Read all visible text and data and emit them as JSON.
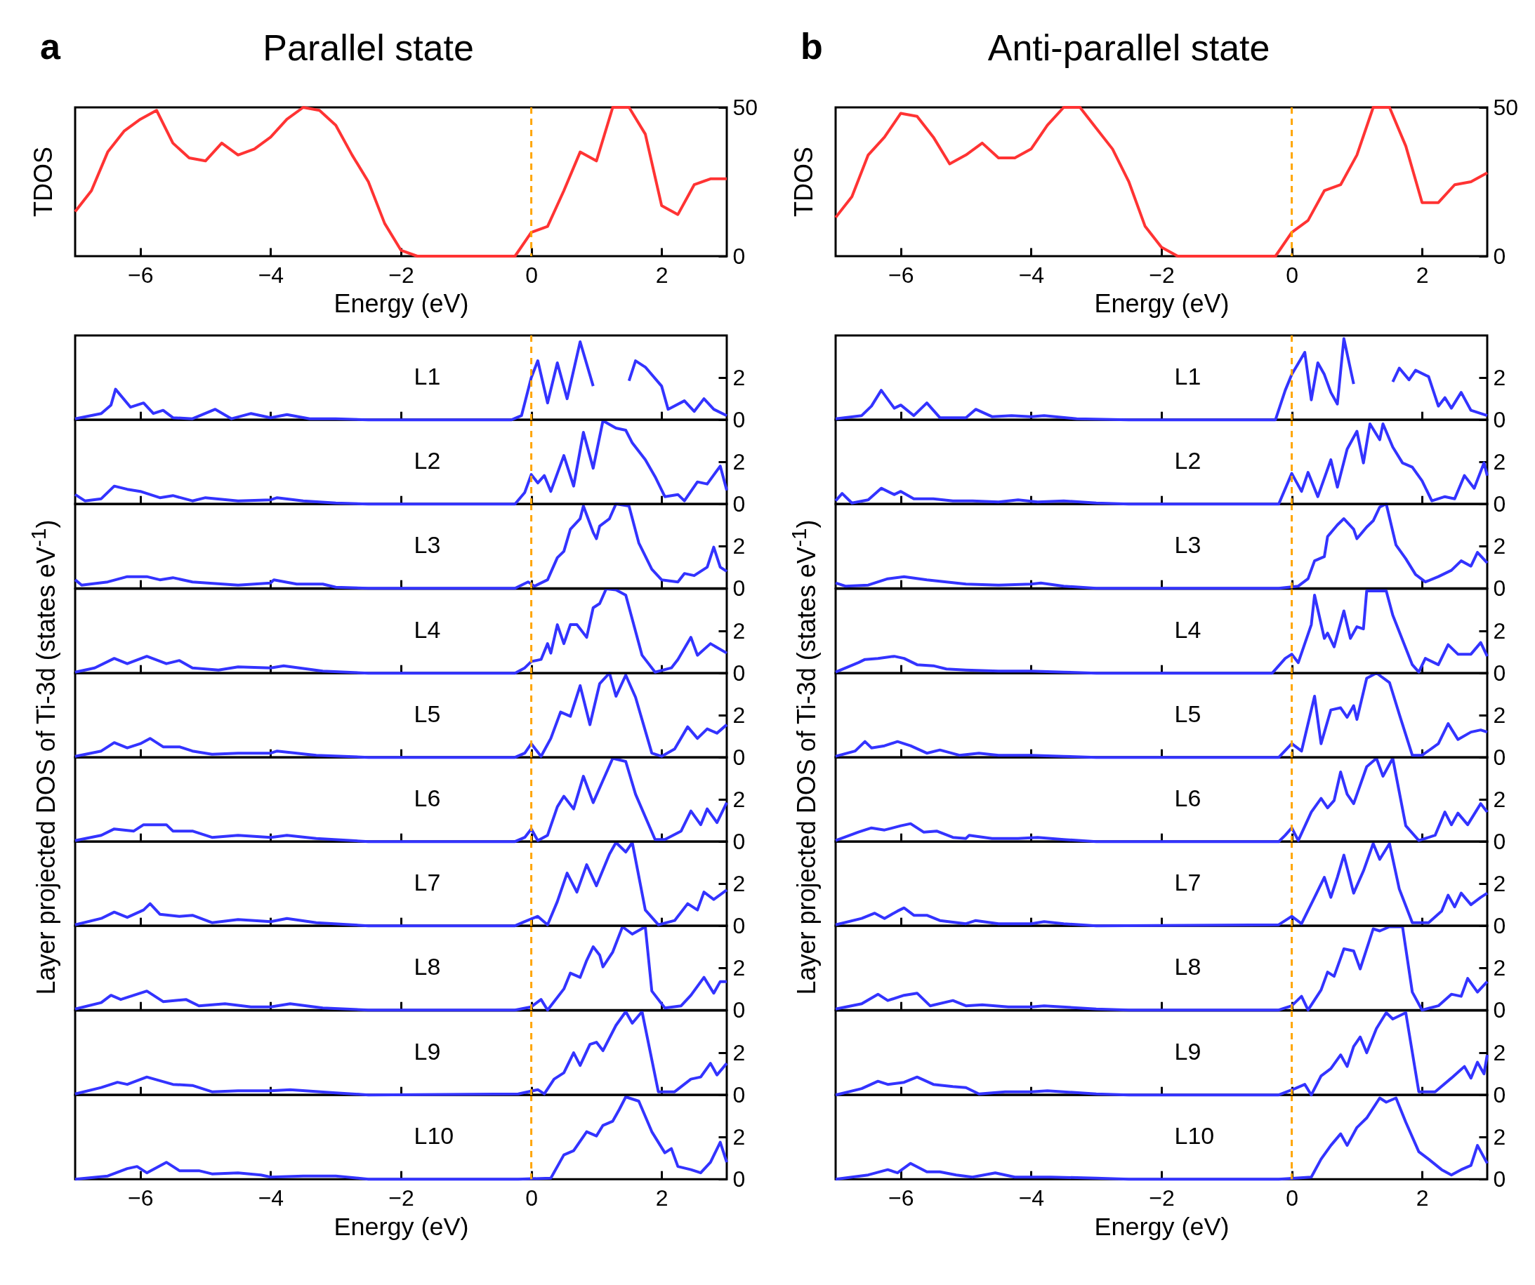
{
  "chart_data": [
    {
      "type": "line",
      "title": "Parallel state",
      "annotations": [
        "a"
      ],
      "xlabel": "Energy (eV)",
      "ylabel": "TDOS",
      "x": [
        -7,
        -6.75,
        -6.5,
        -6.25,
        -6,
        -5.75,
        -5.5,
        -5.25,
        -5,
        -4.75,
        -4.5,
        -4.25,
        -4,
        -3.75,
        -3.5,
        -3.25,
        -3,
        -2.75,
        -2.5,
        -2.25,
        -2,
        -1.75,
        -0.25,
        0,
        0.25,
        0.5,
        0.75,
        1,
        1.25,
        1.5,
        1.75,
        2,
        2.25,
        2.5,
        2.75,
        3
      ],
      "series": [
        {
          "color": "#ff3333",
          "values": [
            15,
            22,
            35,
            42,
            46,
            49,
            38,
            33,
            32,
            38,
            34,
            36,
            40,
            46,
            50,
            49,
            44,
            34,
            25,
            11,
            2,
            0,
            0,
            8,
            10,
            22,
            35,
            32,
            50,
            50,
            41,
            17,
            14,
            24,
            26,
            26
          ]
        }
      ],
      "xlim": [
        -7,
        3
      ],
      "xticks": [
        -6,
        -4,
        -2,
        0,
        2
      ],
      "ylim": [
        0,
        50
      ],
      "yticks": [
        0,
        50
      ],
      "ref_lines": [
        {
          "axis": "x",
          "value": 0,
          "color": "#ffa500",
          "line_style": "dashed"
        }
      ]
    },
    {
      "type": "line",
      "annotations": [
        "L1"
      ],
      "ylabel": "Layer projected DOS of Ti-3d (states eV$^{-1}$)",
      "x": [
        -7,
        -6.6,
        -6.45,
        -6.38,
        -6.15,
        -5.95,
        -5.8,
        -5.65,
        -5.5,
        -5.2,
        -4.85,
        -4.6,
        -4.3,
        -4,
        -3.75,
        -3.4,
        -3,
        -2.5,
        -0.3,
        -0.15,
        0,
        0.1,
        0.25,
        0.4,
        0.55,
        0.75,
        0.95,
        1.15,
        1.3,
        1.5,
        1.6,
        1.75,
        2,
        2.1,
        2.35,
        2.5,
        2.65,
        2.8,
        3
      ],
      "series": [
        {
          "color": "#3333ff",
          "values": [
            0.05,
            0.3,
            0.7,
            1.45,
            0.6,
            0.8,
            0.3,
            0.45,
            0.1,
            0.05,
            0.5,
            0.05,
            0.3,
            0.1,
            0.25,
            0.05,
            0.05,
            0,
            0,
            0.2,
            2.0,
            2.8,
            0.8,
            2.7,
            1.0,
            3.7,
            1.6,
            null,
            null,
            1.85,
            2.8,
            2.5,
            1.6,
            0.5,
            0.9,
            0.4,
            1.0,
            0.5,
            0.2
          ]
        }
      ],
      "xlim": [
        -7,
        3
      ],
      "xticks": [
        -6,
        -4,
        -2,
        0,
        2
      ],
      "ylim": [
        0,
        4
      ],
      "yticks": [
        0,
        2
      ],
      "tick_labels": "y",
      "ref_lines": [
        {
          "axis": "x",
          "value": 0,
          "color": "#ffa500",
          "line_style": "dashed"
        }
      ]
    },
    {
      "type": "line",
      "annotations": [
        "L2"
      ],
      "x": [
        -7,
        -6.85,
        -6.6,
        -6.4,
        -6.2,
        -6,
        -5.7,
        -5.5,
        -5.2,
        -5,
        -4.5,
        -4,
        -3.9,
        -3.5,
        -3,
        -2.5,
        -0.25,
        -0.1,
        0,
        0.1,
        0.2,
        0.3,
        0.5,
        0.65,
        0.8,
        0.95,
        1.1,
        1.3,
        1.45,
        1.55,
        1.75,
        1.9,
        2.05,
        2.25,
        2.35,
        2.55,
        2.7,
        2.9,
        3
      ],
      "series": [
        {
          "color": "#3333ff",
          "values": [
            0.45,
            0.15,
            0.25,
            0.85,
            0.7,
            0.6,
            0.3,
            0.4,
            0.15,
            0.3,
            0.15,
            0.2,
            0.3,
            0.15,
            0.05,
            0,
            0,
            0.55,
            1.4,
            1.0,
            1.35,
            0.6,
            2.3,
            0.85,
            3.4,
            1.7,
            3.95,
            3.6,
            3.5,
            2.9,
            2.1,
            1.3,
            0.35,
            0.45,
            0.15,
            1.05,
            0.95,
            1.8,
            0.65
          ]
        }
      ],
      "xlim": [
        -7,
        3
      ],
      "xticks": [
        -6,
        -4,
        -2,
        0,
        2
      ],
      "ylim": [
        0,
        4
      ],
      "yticks": [
        0,
        2
      ],
      "tick_labels": "y",
      "ref_lines": [
        {
          "axis": "x",
          "value": 0,
          "color": "#ffa500",
          "line_style": "dashed"
        }
      ]
    },
    {
      "type": "line",
      "annotations": [
        "L3"
      ],
      "x": [
        -7,
        -6.9,
        -6.5,
        -6.2,
        -5.9,
        -5.7,
        -5.5,
        -5.2,
        -4.5,
        -4,
        -3.95,
        -3.6,
        -3.2,
        -3,
        -2.5,
        -0.25,
        -0.05,
        0.05,
        0.25,
        0.4,
        0.5,
        0.6,
        0.75,
        0.8,
        0.95,
        1,
        1.05,
        1.2,
        1.3,
        1.5,
        1.65,
        1.85,
        2,
        2.25,
        2.35,
        2.5,
        2.7,
        2.8,
        2.9,
        3
      ],
      "series": [
        {
          "color": "#3333ff",
          "values": [
            0.4,
            0.15,
            0.3,
            0.55,
            0.55,
            0.4,
            0.5,
            0.3,
            0.15,
            0.25,
            0.4,
            0.2,
            0.2,
            0.05,
            0,
            0,
            0.3,
            0.1,
            0.4,
            1.45,
            1.75,
            2.8,
            3.3,
            3.9,
            2.65,
            2.35,
            2.95,
            3.3,
            4,
            3.9,
            2.15,
            0.9,
            0.4,
            0.3,
            0.7,
            0.6,
            1.0,
            1.95,
            1.0,
            0.8
          ]
        }
      ],
      "xlim": [
        -7,
        3
      ],
      "xticks": [
        -6,
        -4,
        -2,
        0,
        2
      ],
      "ylim": [
        0,
        4
      ],
      "yticks": [
        0,
        2
      ],
      "tick_labels": "y",
      "ref_lines": [
        {
          "axis": "x",
          "value": 0,
          "color": "#ffa500",
          "line_style": "dashed"
        }
      ]
    },
    {
      "type": "line",
      "annotations": [
        "L4"
      ],
      "x": [
        -7,
        -6.7,
        -6.4,
        -6.2,
        -5.9,
        -5.6,
        -5.4,
        -5.2,
        -4.8,
        -4.5,
        -4,
        -3.8,
        -3.2,
        -2.5,
        -0.25,
        -0.1,
        0,
        0.15,
        0.25,
        0.3,
        0.4,
        0.5,
        0.6,
        0.7,
        0.85,
        0.95,
        1.05,
        1.15,
        1.3,
        1.45,
        1.7,
        1.9,
        2.15,
        2.25,
        2.45,
        2.55,
        2.75,
        3
      ],
      "series": [
        {
          "color": "#3333ff",
          "values": [
            0.05,
            0.25,
            0.7,
            0.45,
            0.8,
            0.45,
            0.6,
            0.25,
            0.15,
            0.3,
            0.25,
            0.35,
            0.1,
            0,
            0,
            0.25,
            0.55,
            0.65,
            1.4,
            0.95,
            2.3,
            1.4,
            2.3,
            2.3,
            1.7,
            3.1,
            3.3,
            4,
            3.95,
            3.7,
            0.85,
            0.05,
            0.25,
            0.65,
            1.7,
            0.85,
            1.4,
            0.95
          ]
        }
      ],
      "xlim": [
        -7,
        3
      ],
      "xticks": [
        -6,
        -4,
        -2,
        0,
        2
      ],
      "ylim": [
        0,
        4
      ],
      "yticks": [
        0,
        2
      ],
      "tick_labels": "y",
      "ref_lines": [
        {
          "axis": "x",
          "value": 0,
          "color": "#ffa500",
          "line_style": "dashed"
        }
      ]
    },
    {
      "type": "line",
      "annotations": [
        "L5"
      ],
      "x": [
        -7,
        -6.6,
        -6.4,
        -6.2,
        -6,
        -5.85,
        -5.65,
        -5.4,
        -5.2,
        -4.9,
        -4.5,
        -4,
        -3.9,
        -3.3,
        -2.5,
        -0.25,
        -0.1,
        0,
        0.15,
        0.3,
        0.45,
        0.6,
        0.75,
        0.9,
        1.05,
        1.2,
        1.3,
        1.45,
        1.6,
        1.85,
        2,
        2.2,
        2.4,
        2.55,
        2.7,
        2.85,
        3
      ],
      "series": [
        {
          "color": "#3333ff",
          "values": [
            0.05,
            0.3,
            0.7,
            0.45,
            0.65,
            0.9,
            0.5,
            0.5,
            0.3,
            0.15,
            0.2,
            0.2,
            0.3,
            0.1,
            0,
            0,
            0.2,
            0.65,
            0.05,
            0.9,
            2.15,
            1.95,
            3.4,
            1.55,
            3.5,
            4,
            2.9,
            3.9,
            2.85,
            0.2,
            0.05,
            0.4,
            1.45,
            0.9,
            1.35,
            1.15,
            1.55
          ]
        }
      ],
      "xlim": [
        -7,
        3
      ],
      "xticks": [
        -6,
        -4,
        -2,
        0,
        2
      ],
      "ylim": [
        0,
        4
      ],
      "yticks": [
        0,
        2
      ],
      "tick_labels": "y",
      "ref_lines": [
        {
          "axis": "x",
          "value": 0,
          "color": "#ffa500",
          "line_style": "dashed"
        }
      ]
    },
    {
      "type": "line",
      "annotations": [
        "L6"
      ],
      "x": [
        -7,
        -6.6,
        -6.4,
        -6.1,
        -5.95,
        -5.6,
        -5.5,
        -5.2,
        -4.9,
        -4.5,
        -4,
        -3.75,
        -3.3,
        -2.5,
        -0.25,
        -0.1,
        0,
        0.1,
        0.25,
        0.4,
        0.5,
        0.65,
        0.8,
        0.95,
        1.1,
        1.25,
        1.45,
        1.6,
        1.9,
        2.05,
        2.3,
        2.45,
        2.6,
        2.7,
        2.85,
        3
      ],
      "series": [
        {
          "color": "#3333ff",
          "values": [
            0.05,
            0.3,
            0.6,
            0.5,
            0.8,
            0.8,
            0.5,
            0.5,
            0.2,
            0.3,
            0.2,
            0.3,
            0.15,
            0,
            0,
            0.2,
            0.6,
            0.05,
            0.3,
            1.65,
            2.15,
            1.55,
            3.1,
            1.85,
            2.9,
            3.95,
            3.8,
            2.25,
            0.1,
            0.1,
            0.5,
            1.45,
            0.8,
            1.55,
            0.9,
            1.85
          ]
        }
      ],
      "xlim": [
        -7,
        3
      ],
      "xticks": [
        -6,
        -4,
        -2,
        0,
        2
      ],
      "ylim": [
        0,
        4
      ],
      "yticks": [
        0,
        2
      ],
      "tick_labels": "y",
      "ref_lines": [
        {
          "axis": "x",
          "value": 0,
          "color": "#ffa500",
          "line_style": "dashed"
        }
      ]
    },
    {
      "type": "line",
      "annotations": [
        "L7"
      ],
      "x": [
        -7,
        -6.6,
        -6.4,
        -6.2,
        -5.95,
        -5.85,
        -5.7,
        -5.4,
        -5.2,
        -4.9,
        -4.5,
        -4,
        -3.75,
        -3.3,
        -2.5,
        -0.25,
        -0.1,
        0.1,
        0.25,
        0.4,
        0.55,
        0.7,
        0.85,
        1,
        1.2,
        1.3,
        1.45,
        1.55,
        1.75,
        1.95,
        2.2,
        2.4,
        2.55,
        2.65,
        2.8,
        3
      ],
      "series": [
        {
          "color": "#3333ff",
          "values": [
            0.05,
            0.35,
            0.65,
            0.4,
            0.75,
            1.05,
            0.55,
            0.45,
            0.5,
            0.15,
            0.3,
            0.2,
            0.35,
            0.15,
            0,
            0,
            0.2,
            0.45,
            0.05,
            1.15,
            2.5,
            1.6,
            2.9,
            1.9,
            3.4,
            3.95,
            3.5,
            3.95,
            0.75,
            0.05,
            0.25,
            1.05,
            0.75,
            1.6,
            1.25,
            1.7
          ]
        }
      ],
      "xlim": [
        -7,
        3
      ],
      "xticks": [
        -6,
        -4,
        -2,
        0,
        2
      ],
      "ylim": [
        0,
        4
      ],
      "yticks": [
        0,
        2
      ],
      "tick_labels": "y",
      "ref_lines": [
        {
          "axis": "x",
          "value": 0,
          "color": "#ffa500",
          "line_style": "dashed"
        }
      ]
    },
    {
      "type": "line",
      "annotations": [
        "L8"
      ],
      "x": [
        -7,
        -6.6,
        -6.45,
        -6.3,
        -6.1,
        -5.9,
        -5.65,
        -5.3,
        -5.1,
        -4.7,
        -4.3,
        -4,
        -3.7,
        -3.2,
        -2.5,
        -0.25,
        0,
        0.15,
        0.25,
        0.5,
        0.6,
        0.75,
        0.85,
        0.95,
        1.05,
        1.1,
        1.25,
        1.4,
        1.55,
        1.75,
        1.85,
        2.05,
        2.3,
        2.45,
        2.65,
        2.8,
        2.9,
        3
      ],
      "series": [
        {
          "color": "#3333ff",
          "values": [
            0.05,
            0.35,
            0.7,
            0.5,
            0.7,
            0.9,
            0.4,
            0.5,
            0.2,
            0.3,
            0.15,
            0.15,
            0.3,
            0.1,
            0,
            0,
            0.15,
            0.5,
            0,
            1.0,
            1.75,
            1.55,
            2.35,
            3.0,
            2.6,
            2.05,
            2.75,
            3.95,
            3.6,
            3.95,
            0.9,
            0.1,
            0.2,
            0.7,
            1.55,
            0.8,
            1.35,
            1.35
          ]
        }
      ],
      "xlim": [
        -7,
        3
      ],
      "xticks": [
        -6,
        -4,
        -2,
        0,
        2
      ],
      "ylim": [
        0,
        4
      ],
      "yticks": [
        0,
        2
      ],
      "tick_labels": "y",
      "ref_lines": [
        {
          "axis": "x",
          "value": 0,
          "color": "#ffa500",
          "line_style": "dashed"
        }
      ]
    },
    {
      "type": "line",
      "annotations": [
        "L9"
      ],
      "x": [
        -7,
        -6.6,
        -6.35,
        -6.2,
        -5.9,
        -5.5,
        -5.2,
        -4.9,
        -4.5,
        -4,
        -3.7,
        -3,
        -2.5,
        -0.2,
        0.1,
        0.2,
        0.35,
        0.5,
        0.65,
        0.75,
        0.9,
        1,
        1.1,
        1.3,
        1.45,
        1.55,
        1.7,
        1.95,
        2.2,
        2.45,
        2.6,
        2.75,
        2.85,
        3
      ],
      "series": [
        {
          "color": "#3333ff",
          "values": [
            0.05,
            0.35,
            0.6,
            0.5,
            0.85,
            0.5,
            0.45,
            0.15,
            0.2,
            0.2,
            0.25,
            0.1,
            0,
            0.05,
            0.25,
            0.05,
            0.75,
            1.05,
            2.0,
            1.4,
            2.4,
            2.5,
            2.1,
            3.3,
            3.95,
            3.4,
            3.95,
            0.15,
            0.15,
            0.75,
            0.85,
            1.5,
            0.95,
            1.5
          ]
        }
      ],
      "xlim": [
        -7,
        3
      ],
      "xticks": [
        -6,
        -4,
        -2,
        0,
        2
      ],
      "ylim": [
        0,
        4
      ],
      "yticks": [
        0,
        2
      ],
      "tick_labels": "y",
      "ref_lines": [
        {
          "axis": "x",
          "value": 0,
          "color": "#ffa500",
          "line_style": "dashed"
        }
      ]
    },
    {
      "type": "line",
      "annotations": [
        "L10"
      ],
      "xlabel": "Energy (eV)",
      "x": [
        -7,
        -6.5,
        -6.2,
        -6.05,
        -5.9,
        -5.6,
        -5.4,
        -5.1,
        -4.9,
        -4.5,
        -4.15,
        -4,
        -3.5,
        -3,
        -2.5,
        -0.2,
        0.3,
        0.5,
        0.65,
        0.85,
        1,
        1.1,
        1.25,
        1.35,
        1.45,
        1.65,
        1.85,
        2.05,
        2.15,
        2.25,
        2.45,
        2.6,
        2.75,
        2.9,
        3
      ],
      "series": [
        {
          "color": "#3333ff",
          "values": [
            0,
            0.15,
            0.5,
            0.6,
            0.3,
            0.8,
            0.4,
            0.4,
            0.25,
            0.3,
            0.2,
            0.1,
            0.15,
            0.15,
            0,
            0,
            0.05,
            1.15,
            1.35,
            2.25,
            2.05,
            2.55,
            2.75,
            3.3,
            3.9,
            3.7,
            2.25,
            1.25,
            1.45,
            0.6,
            0.45,
            0.3,
            0.8,
            1.75,
            0.8
          ]
        }
      ],
      "xlim": [
        -7,
        3
      ],
      "xticks": [
        -6,
        -4,
        -2,
        0,
        2
      ],
      "ylim": [
        0,
        4
      ],
      "yticks": [
        0,
        2
      ],
      "ref_lines": [
        {
          "axis": "x",
          "value": 0,
          "color": "#ffa500",
          "line_style": "dashed"
        }
      ]
    },
    {
      "type": "line",
      "title": "Anti-parallel state",
      "annotations": [
        "b"
      ],
      "xlabel": "Energy (eV)",
      "ylabel": "TDOS",
      "x": [
        -7,
        -6.75,
        -6.5,
        -6.25,
        -6,
        -5.75,
        -5.5,
        -5.25,
        -5,
        -4.75,
        -4.5,
        -4.25,
        -4,
        -3.75,
        -3.5,
        -3.25,
        -3,
        -2.75,
        -2.5,
        -2.25,
        -2,
        -1.75,
        -0.25,
        0,
        0.25,
        0.5,
        0.75,
        1,
        1.25,
        1.5,
        1.75,
        2,
        2.25,
        2.5,
        2.75,
        3
      ],
      "series": [
        {
          "color": "#ff3333",
          "values": [
            13,
            20,
            34,
            40,
            48,
            47,
            40,
            31,
            34,
            38,
            33,
            33,
            36,
            44,
            50,
            50,
            43,
            36,
            25,
            10,
            3,
            0,
            0,
            8,
            12,
            22,
            24,
            34,
            50,
            50,
            37,
            18,
            18,
            24,
            25,
            28
          ]
        }
      ],
      "xlim": [
        -7,
        3
      ],
      "xticks": [
        -6,
        -4,
        -2,
        0,
        2
      ],
      "ylim": [
        0,
        50
      ],
      "yticks": [
        0,
        50
      ],
      "ref_lines": [
        {
          "axis": "x",
          "value": 0,
          "color": "#ffa500",
          "line_style": "dashed"
        }
      ]
    },
    {
      "type": "line",
      "annotations": [
        "L1"
      ],
      "ylabel": "Layer projected DOS of Ti-3d (states eV$^{-1}$)",
      "x": [
        -7,
        -6.6,
        -6.45,
        -6.3,
        -6.1,
        -6,
        -5.8,
        -5.6,
        -5.4,
        -5,
        -4.85,
        -4.6,
        -4.3,
        -4,
        -3.8,
        -3.3,
        -2.5,
        -0.25,
        -0.1,
        0,
        0.2,
        0.3,
        0.4,
        0.5,
        0.6,
        0.7,
        0.8,
        0.95,
        1.15,
        1.4,
        1.55,
        1.65,
        1.8,
        1.9,
        2.1,
        2.25,
        2.35,
        2.45,
        2.6,
        2.75,
        3
      ],
      "series": [
        {
          "color": "#3333ff",
          "values": [
            0.05,
            0.2,
            0.65,
            1.4,
            0.55,
            0.7,
            0.2,
            0.8,
            0.1,
            0.1,
            0.5,
            0.15,
            0.2,
            0.15,
            0.2,
            0.05,
            0,
            0,
            1.4,
            2.15,
            3.2,
            0.95,
            2.7,
            2.15,
            1.3,
            0.75,
            3.85,
            1.7,
            null,
            null,
            1.8,
            2.45,
            1.9,
            2.35,
            2.05,
            0.65,
            1.05,
            0.55,
            1.3,
            0.45,
            0.2
          ]
        }
      ],
      "xlim": [
        -7,
        3
      ],
      "xticks": [
        -6,
        -4,
        -2,
        0,
        2
      ],
      "ylim": [
        0,
        4
      ],
      "yticks": [
        0,
        2
      ],
      "tick_labels": "y",
      "ref_lines": [
        {
          "axis": "x",
          "value": 0,
          "color": "#ffa500",
          "line_style": "dashed"
        }
      ]
    },
    {
      "type": "line",
      "annotations": [
        "L2"
      ],
      "x": [
        -7,
        -6.9,
        -6.75,
        -6.5,
        -6.3,
        -6.1,
        -6,
        -5.8,
        -5.5,
        -5.2,
        -4.9,
        -4.5,
        -4.2,
        -3.9,
        -3.5,
        -3,
        -2.5,
        -0.2,
        0,
        0.15,
        0.25,
        0.4,
        0.6,
        0.7,
        0.85,
        1,
        1.1,
        1.2,
        1.35,
        1.4,
        1.55,
        1.7,
        1.85,
        2,
        2.15,
        2.35,
        2.5,
        2.65,
        2.8,
        2.95,
        3
      ],
      "series": [
        {
          "color": "#3333ff",
          "values": [
            0.15,
            0.5,
            0.05,
            0.2,
            0.75,
            0.45,
            0.6,
            0.25,
            0.25,
            0.15,
            0.15,
            0.1,
            0.2,
            0.1,
            0.15,
            0.05,
            0,
            0,
            1.45,
            0.6,
            1.5,
            0.35,
            2.1,
            0.8,
            2.6,
            3.45,
            1.95,
            3.8,
            3.05,
            3.8,
            2.7,
            1.95,
            1.75,
            1.1,
            0.15,
            0.35,
            0.25,
            1.35,
            0.75,
            1.95,
            1.35
          ]
        }
      ],
      "xlim": [
        -7,
        3
      ],
      "xticks": [
        -6,
        -4,
        -2,
        0,
        2
      ],
      "ylim": [
        0,
        4
      ],
      "yticks": [
        0,
        2
      ],
      "tick_labels": "y",
      "ref_lines": [
        {
          "axis": "x",
          "value": 0,
          "color": "#ffa500",
          "line_style": "dashed"
        }
      ]
    },
    {
      "type": "line",
      "annotations": [
        "L3"
      ],
      "x": [
        -7,
        -6.85,
        -6.5,
        -6.2,
        -5.95,
        -5.6,
        -5.3,
        -5,
        -4.5,
        -4,
        -3.85,
        -3.5,
        -3,
        -0.2,
        0.1,
        0.25,
        0.35,
        0.5,
        0.55,
        0.7,
        0.8,
        0.95,
        1,
        1.15,
        1.25,
        1.35,
        1.45,
        1.6,
        1.75,
        1.9,
        2.05,
        2.25,
        2.45,
        2.6,
        2.75,
        2.85,
        3
      ],
      "series": [
        {
          "color": "#3333ff",
          "values": [
            0.25,
            0.1,
            0.15,
            0.45,
            0.55,
            0.4,
            0.3,
            0.2,
            0.15,
            0.2,
            0.25,
            0.1,
            0,
            0,
            0.1,
            0.45,
            1.3,
            1.5,
            2.45,
            3.0,
            3.3,
            2.8,
            2.35,
            2.9,
            3.2,
            3.85,
            4,
            2.05,
            1.4,
            0.65,
            0.3,
            0.55,
            0.85,
            1.3,
            1.05,
            1.7,
            1.2
          ]
        }
      ],
      "xlim": [
        -7,
        3
      ],
      "xticks": [
        -6,
        -4,
        -2,
        0,
        2
      ],
      "ylim": [
        0,
        4
      ],
      "yticks": [
        0,
        2
      ],
      "tick_labels": "y",
      "ref_lines": [
        {
          "axis": "x",
          "value": 0,
          "color": "#ffa500",
          "line_style": "dashed"
        }
      ]
    },
    {
      "type": "line",
      "annotations": [
        "L4"
      ],
      "x": [
        -7,
        -6.65,
        -6.55,
        -6.35,
        -6.1,
        -5.95,
        -5.75,
        -5.5,
        -5.3,
        -5,
        -4.5,
        -4,
        -3.5,
        -3,
        -0.3,
        -0.1,
        0,
        0.1,
        0.3,
        0.35,
        0.5,
        0.55,
        0.65,
        0.8,
        0.9,
        1,
        1.1,
        1.15,
        1.45,
        1.55,
        1.85,
        1.95,
        2.05,
        2.25,
        2.4,
        2.55,
        2.75,
        2.9,
        3
      ],
      "series": [
        {
          "color": "#3333ff",
          "values": [
            0.05,
            0.5,
            0.65,
            0.7,
            0.8,
            0.7,
            0.4,
            0.35,
            0.2,
            0.15,
            0.1,
            0.1,
            0.05,
            0,
            0,
            0.7,
            0.9,
            0.5,
            2.3,
            3.7,
            1.65,
            1.9,
            1.25,
            2.95,
            1.65,
            2.2,
            2.1,
            3.9,
            3.9,
            2.75,
            0.4,
            0.05,
            0.7,
            0.4,
            1.35,
            0.9,
            0.9,
            1.45,
            0.8
          ]
        }
      ],
      "xlim": [
        -7,
        3
      ],
      "xticks": [
        -6,
        -4,
        -2,
        0,
        2
      ],
      "ylim": [
        0,
        4
      ],
      "yticks": [
        0,
        2
      ],
      "tick_labels": "y",
      "ref_lines": [
        {
          "axis": "x",
          "value": 0,
          "color": "#ffa500",
          "line_style": "dashed"
        }
      ]
    },
    {
      "type": "line",
      "annotations": [
        "L5"
      ],
      "x": [
        -7,
        -6.7,
        -6.55,
        -6.45,
        -6.25,
        -6.05,
        -5.85,
        -5.6,
        -5.4,
        -5.1,
        -4.8,
        -4.5,
        -4,
        -3.5,
        -3,
        -0.2,
        0,
        0.15,
        0.3,
        0.35,
        0.45,
        0.6,
        0.75,
        0.85,
        0.95,
        1,
        1.15,
        1.3,
        1.5,
        1.65,
        1.85,
        2,
        2.25,
        2.4,
        2.55,
        2.75,
        2.9,
        3
      ],
      "series": [
        {
          "color": "#3333ff",
          "values": [
            0.05,
            0.3,
            0.75,
            0.45,
            0.55,
            0.75,
            0.55,
            0.2,
            0.35,
            0.1,
            0.2,
            0.1,
            0.1,
            0.05,
            0,
            0,
            0.65,
            0.3,
            2.25,
            2.9,
            0.65,
            2.25,
            2.35,
            1.9,
            2.45,
            1.8,
            3.75,
            4,
            3.55,
            2.05,
            0.1,
            0.1,
            0.65,
            1.6,
            0.85,
            1.2,
            1.3,
            1.2
          ]
        }
      ],
      "xlim": [
        -7,
        3
      ],
      "xticks": [
        -6,
        -4,
        -2,
        0,
        2
      ],
      "ylim": [
        0,
        4
      ],
      "yticks": [
        0,
        2
      ],
      "tick_labels": "y",
      "ref_lines": [
        {
          "axis": "x",
          "value": 0,
          "color": "#ffa500",
          "line_style": "dashed"
        }
      ]
    },
    {
      "type": "line",
      "annotations": [
        "L6"
      ],
      "x": [
        -7,
        -6.65,
        -6.45,
        -6.25,
        -6,
        -5.85,
        -5.65,
        -5.45,
        -5.2,
        -5,
        -4.95,
        -4.6,
        -4.2,
        -3.9,
        -3.5,
        -3,
        -0.2,
        -0.1,
        0,
        0.1,
        0.3,
        0.45,
        0.55,
        0.65,
        0.75,
        0.85,
        0.95,
        1.15,
        1.3,
        1.4,
        1.55,
        1.75,
        1.95,
        2.2,
        2.35,
        2.45,
        2.55,
        2.7,
        2.9,
        3
      ],
      "series": [
        {
          "color": "#3333ff",
          "values": [
            0.05,
            0.45,
            0.65,
            0.55,
            0.75,
            0.85,
            0.45,
            0.5,
            0.2,
            0.15,
            0.3,
            0.15,
            0.15,
            0.2,
            0.1,
            0,
            0,
            0.3,
            0.65,
            0.05,
            1.4,
            2.05,
            1.6,
            1.95,
            3.3,
            2.25,
            1.8,
            3.55,
            3.95,
            3.1,
            3.95,
            0.75,
            0.05,
            0.3,
            1.4,
            0.8,
            1.35,
            0.8,
            1.8,
            1.4
          ]
        }
      ],
      "xlim": [
        -7,
        3
      ],
      "xticks": [
        -6,
        -4,
        -2,
        0,
        2
      ],
      "ylim": [
        0,
        4
      ],
      "yticks": [
        0,
        2
      ],
      "tick_labels": "y",
      "ref_lines": [
        {
          "axis": "x",
          "value": 0,
          "color": "#ffa500",
          "line_style": "dashed"
        }
      ]
    },
    {
      "type": "line",
      "annotations": [
        "L7"
      ],
      "x": [
        -7,
        -6.6,
        -6.4,
        -6.25,
        -6.05,
        -5.95,
        -5.8,
        -5.6,
        -5.4,
        -5,
        -4.85,
        -4.5,
        -4,
        -3.8,
        -3.5,
        -3,
        -0.2,
        0,
        0.15,
        0.35,
        0.5,
        0.6,
        0.7,
        0.8,
        0.95,
        1.1,
        1.25,
        1.35,
        1.5,
        1.65,
        1.85,
        2.1,
        2.3,
        2.4,
        2.5,
        2.6,
        2.75,
        2.9,
        3
      ],
      "series": [
        {
          "color": "#3333ff",
          "values": [
            0.05,
            0.35,
            0.6,
            0.35,
            0.7,
            0.85,
            0.5,
            0.5,
            0.25,
            0.1,
            0.25,
            0.1,
            0.1,
            0.2,
            0.1,
            0,
            0.05,
            0.45,
            0.1,
            1.35,
            2.3,
            1.35,
            2.3,
            3.35,
            1.55,
            2.6,
            3.9,
            3.15,
            3.9,
            1.75,
            0.15,
            0.15,
            0.7,
            1.45,
            0.9,
            1.55,
            1.0,
            1.35,
            1.55
          ]
        }
      ],
      "xlim": [
        -7,
        3
      ],
      "xticks": [
        -6,
        -4,
        -2,
        0,
        2
      ],
      "ylim": [
        0,
        4
      ],
      "yticks": [
        0,
        2
      ],
      "tick_labels": "y",
      "ref_lines": [
        {
          "axis": "x",
          "value": 0,
          "color": "#ffa500",
          "line_style": "dashed"
        }
      ]
    },
    {
      "type": "line",
      "annotations": [
        "L8"
      ],
      "x": [
        -7,
        -6.6,
        -6.35,
        -6.2,
        -5.95,
        -5.75,
        -5.55,
        -5.2,
        -5,
        -4.75,
        -4.35,
        -4,
        -3.8,
        -3,
        -2.5,
        -0.2,
        0,
        0.15,
        0.25,
        0.45,
        0.55,
        0.65,
        0.8,
        0.95,
        1.05,
        1.25,
        1.35,
        1.5,
        1.7,
        1.85,
        2,
        2.25,
        2.45,
        2.6,
        2.7,
        2.85,
        3
      ],
      "series": [
        {
          "color": "#3333ff",
          "values": [
            0.05,
            0.3,
            0.75,
            0.45,
            0.7,
            0.8,
            0.2,
            0.45,
            0.2,
            0.25,
            0.15,
            0.15,
            0.2,
            0.05,
            0,
            0,
            0.2,
            0.65,
            0,
            0.95,
            1.8,
            1.6,
            2.9,
            2.8,
            1.95,
            3.85,
            3.75,
            3.95,
            3.95,
            0.85,
            0,
            0.2,
            0.75,
            0.65,
            1.5,
            0.85,
            1.35
          ]
        }
      ],
      "xlim": [
        -7,
        3
      ],
      "xticks": [
        -6,
        -4,
        -2,
        0,
        2
      ],
      "ylim": [
        0,
        4
      ],
      "yticks": [
        0,
        2
      ],
      "tick_labels": "y",
      "ref_lines": [
        {
          "axis": "x",
          "value": 0,
          "color": "#ffa500",
          "line_style": "dashed"
        }
      ]
    },
    {
      "type": "line",
      "annotations": [
        "L9"
      ],
      "x": [
        -7,
        -6.6,
        -6.35,
        -6.2,
        -5.95,
        -5.75,
        -5.5,
        -5.2,
        -5,
        -4.8,
        -4.4,
        -4,
        -3.75,
        -3,
        -2.5,
        -0.2,
        0.05,
        0.2,
        0.3,
        0.45,
        0.6,
        0.75,
        0.85,
        0.95,
        1.05,
        1.15,
        1.3,
        1.45,
        1.55,
        1.75,
        1.95,
        2.2,
        2.45,
        2.65,
        2.75,
        2.85,
        2.95,
        3
      ],
      "series": [
        {
          "color": "#3333ff",
          "values": [
            0,
            0.3,
            0.65,
            0.5,
            0.6,
            0.85,
            0.5,
            0.4,
            0.35,
            0.05,
            0.15,
            0.15,
            0.2,
            0.05,
            0,
            0,
            0.3,
            0.5,
            0,
            0.9,
            1.25,
            1.9,
            1.35,
            2.3,
            2.75,
            2.0,
            3.15,
            3.9,
            3.6,
            3.9,
            0.15,
            0.15,
            0.8,
            1.35,
            0.8,
            1.55,
            1.0,
            1.9
          ]
        }
      ],
      "xlim": [
        -7,
        3
      ],
      "xticks": [
        -6,
        -4,
        -2,
        0,
        2
      ],
      "ylim": [
        0,
        4
      ],
      "yticks": [
        0,
        2
      ],
      "tick_labels": "y",
      "ref_lines": [
        {
          "axis": "x",
          "value": 0,
          "color": "#ffa500",
          "line_style": "dashed"
        }
      ]
    },
    {
      "type": "line",
      "annotations": [
        "L10"
      ],
      "xlabel": "Energy (eV)",
      "x": [
        -7,
        -6.5,
        -6.2,
        -6.05,
        -5.85,
        -5.6,
        -5.4,
        -5.15,
        -4.9,
        -4.55,
        -4.25,
        -4,
        -3.7,
        -3,
        -2.5,
        -0.2,
        0.3,
        0.45,
        0.6,
        0.75,
        0.85,
        1,
        1.15,
        1.35,
        1.45,
        1.6,
        1.75,
        1.95,
        2.1,
        2.3,
        2.45,
        2.6,
        2.75,
        2.85,
        3
      ],
      "series": [
        {
          "color": "#3333ff",
          "values": [
            0,
            0.2,
            0.45,
            0.3,
            0.75,
            0.35,
            0.35,
            0.2,
            0.1,
            0.3,
            0.1,
            0.1,
            0.1,
            0.05,
            0,
            0,
            0.1,
            0.95,
            1.6,
            2.15,
            1.6,
            2.45,
            2.9,
            3.85,
            3.65,
            3.85,
            2.7,
            1.3,
            0.95,
            0.45,
            0.2,
            0.45,
            0.65,
            1.6,
            0.75
          ]
        }
      ],
      "xlim": [
        -7,
        3
      ],
      "xticks": [
        -6,
        -4,
        -2,
        0,
        2
      ],
      "ylim": [
        0,
        4
      ],
      "yticks": [
        0,
        2
      ],
      "ref_lines": [
        {
          "axis": "x",
          "value": 0,
          "color": "#ffa500",
          "line_style": "dashed"
        }
      ]
    }
  ]
}
